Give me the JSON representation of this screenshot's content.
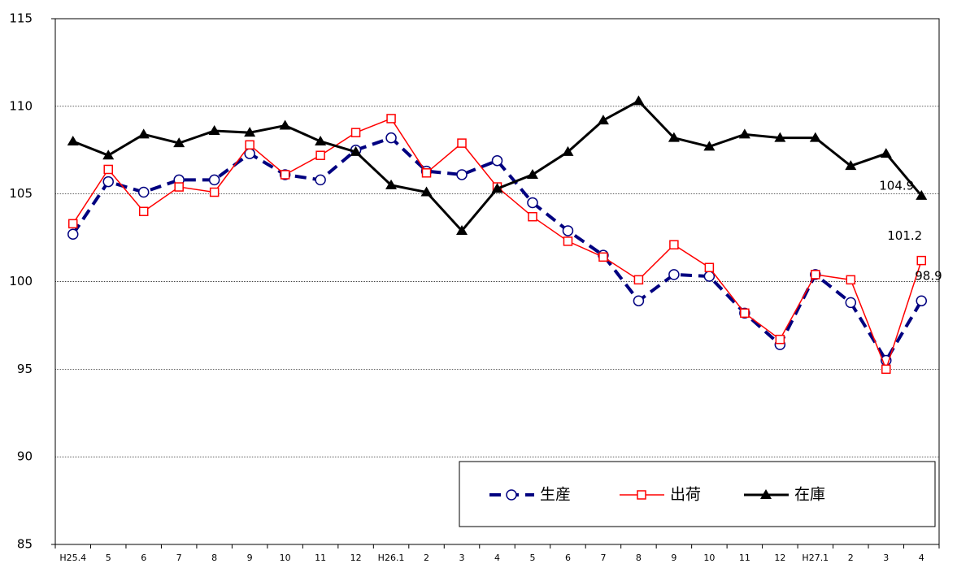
{
  "chart_data": {
    "type": "line",
    "categories": [
      "H25.4",
      "5",
      "6",
      "7",
      "8",
      "9",
      "10",
      "11",
      "12",
      "H26.1",
      "2",
      "3",
      "4",
      "5",
      "6",
      "7",
      "8",
      "9",
      "10",
      "11",
      "12",
      "H27.1",
      "2",
      "3",
      "4"
    ],
    "series": [
      {
        "name": "生産",
        "color": "#000080",
        "marker": "circle",
        "dash": true,
        "values": [
          102.7,
          105.7,
          105.1,
          105.8,
          105.8,
          107.3,
          106.1,
          105.8,
          107.5,
          108.2,
          106.3,
          106.1,
          106.9,
          104.5,
          102.9,
          101.5,
          98.9,
          100.4,
          100.3,
          98.2,
          96.4,
          100.4,
          98.8,
          95.5,
          98.9
        ]
      },
      {
        "name": "出荷",
        "color": "#ff0000",
        "marker": "square",
        "dash": false,
        "values": [
          103.3,
          106.4,
          104.0,
          105.4,
          105.1,
          107.8,
          106.1,
          107.2,
          108.5,
          109.3,
          106.2,
          107.9,
          105.4,
          103.7,
          102.3,
          101.4,
          100.1,
          102.1,
          100.8,
          98.2,
          96.7,
          100.4,
          100.1,
          95.0,
          101.2
        ]
      },
      {
        "name": "在庫",
        "color": "#000000",
        "marker": "triangle",
        "dash": false,
        "values": [
          108.0,
          107.2,
          108.4,
          107.9,
          108.6,
          108.5,
          108.9,
          108.0,
          107.4,
          105.5,
          105.1,
          102.9,
          105.3,
          106.1,
          107.4,
          109.2,
          110.3,
          108.2,
          107.7,
          108.4,
          108.2,
          108.2,
          106.6,
          107.3,
          104.9
        ]
      }
    ],
    "annotations": [
      "104.9",
      "101.2",
      "98.9"
    ],
    "ylim": [
      85,
      115
    ],
    "yticks": [
      85,
      90,
      95,
      100,
      105,
      110,
      115
    ],
    "grid": true
  }
}
